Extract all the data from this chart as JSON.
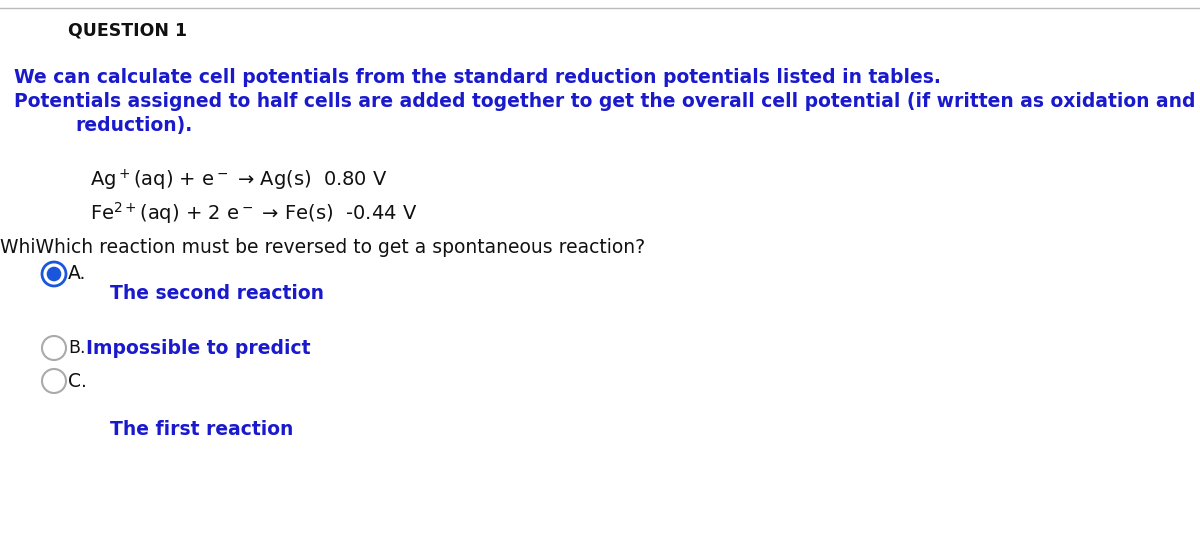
{
  "background_color": "#ffffff",
  "top_line_color": "#bbbbbb",
  "question_label": "QUESTION 1",
  "question_label_color": "#111111",
  "question_label_fontsize": 12.5,
  "body_color": "#1a1acc",
  "body_fontsize": 13.5,
  "line1": "We can calculate cell potentials from the standard reduction potentials listed in tables.",
  "line2a": "Potentials assigned to half cells are added together to get the overall cell potential (if written as oxidation and",
  "line2b": "    reduction).",
  "reaction1_text": "Ag$^+$(aq) + e$^-$ → Ag(s)  0.80 V",
  "reaction2_text": "Fe$^{2+}$(aq) + 2 e$^-$ → Fe(s)  -0.44 V",
  "question_text": "WhiWhich reaction must be reversed to get a spontaneous reaction?",
  "question_text_color": "#111111",
  "question_text_fontsize": 13.5,
  "option_a_label": "A.",
  "option_a_answer": "The second reaction",
  "option_b_label": "B.",
  "option_b_answer": "Impossible to predict",
  "option_c_label": "C.",
  "option_c_answer": "The first reaction",
  "option_color": "#1a1acc",
  "option_label_color": "#111111",
  "option_fontsize": 13.5,
  "radio_selected_color": "#1a55dd",
  "radio_unselected_color": "#aaaaaa",
  "fig_width": 12.0,
  "fig_height": 5.44,
  "dpi": 100
}
